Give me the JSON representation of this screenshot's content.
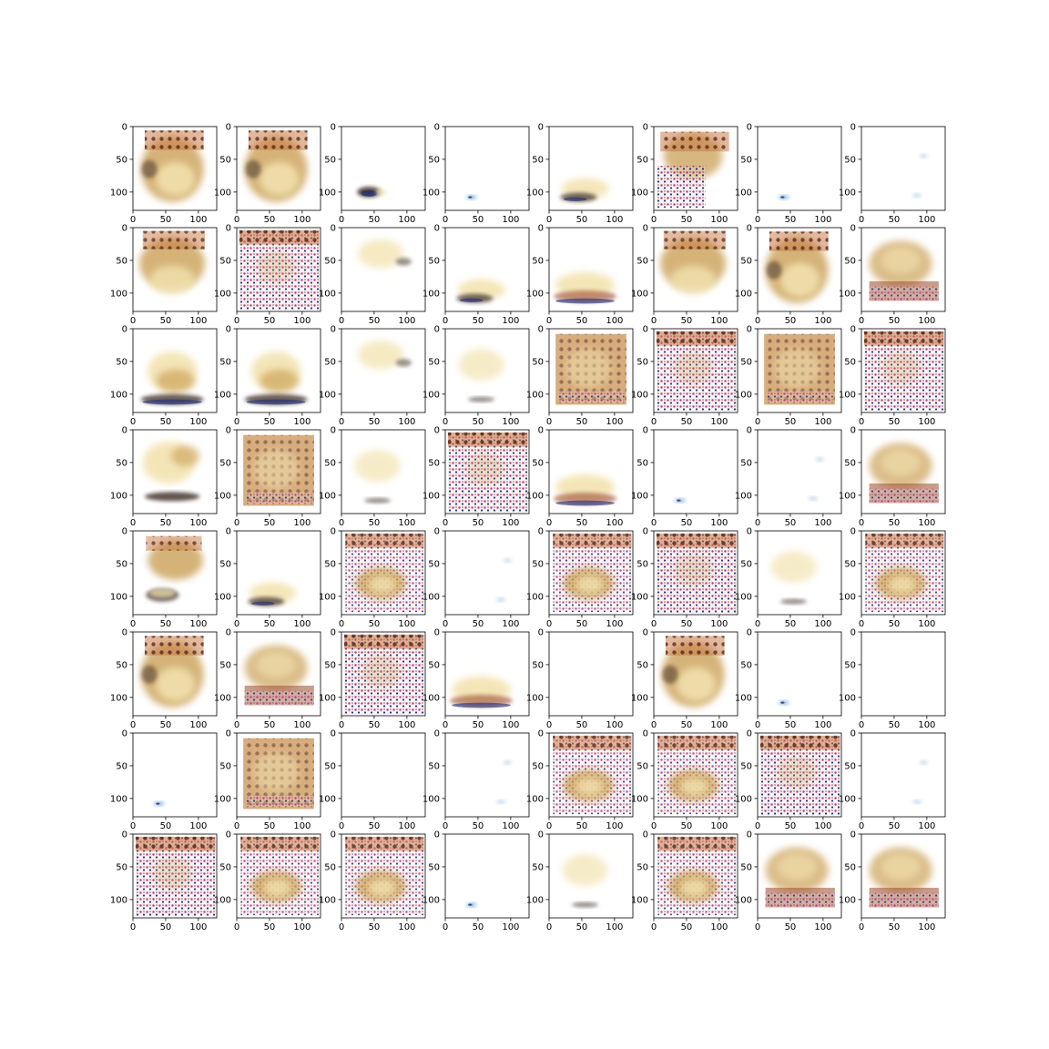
{
  "chart_data": {
    "type": "image-grid",
    "rows": 8,
    "cols": 8,
    "subplot": {
      "xlim": [
        0,
        128
      ],
      "ylim": [
        128,
        0
      ],
      "xticks": [
        0,
        50,
        100
      ],
      "xtick_labels": [
        "0",
        "50",
        "100"
      ],
      "yticks": [
        0,
        50,
        100
      ],
      "ytick_labels": [
        "0",
        "50",
        "100"
      ]
    },
    "blob_palette": {
      "cream": "#f3e3b0",
      "ochre": "#c79a4c",
      "rust": "#9b4a2a",
      "dark": "#3a2a20",
      "navy": "#1c2a78",
      "magenta": "#b02a8a",
      "skyblue": "#6fa8d8"
    },
    "panels": [
      {
        "v": "brown-blob"
      },
      {
        "v": "brown-blob"
      },
      {
        "v": "small-bottom-dark"
      },
      {
        "v": "tiny-blue"
      },
      {
        "v": "low-yellow"
      },
      {
        "v": "pattern-top"
      },
      {
        "v": "tiny-blue"
      },
      {
        "v": "faint-specks"
      },
      {
        "v": "brown-blob-diag"
      },
      {
        "v": "pattern-full"
      },
      {
        "v": "light-top"
      },
      {
        "v": "low-yellow"
      },
      {
        "v": "low-yellow-wide"
      },
      {
        "v": "brown-blob-diag"
      },
      {
        "v": "brown-blob"
      },
      {
        "v": "brown-band"
      },
      {
        "v": "yellow-band"
      },
      {
        "v": "yellow-band"
      },
      {
        "v": "light-top"
      },
      {
        "v": "light-mid"
      },
      {
        "v": "brown-square"
      },
      {
        "v": "pattern-full"
      },
      {
        "v": "brown-square"
      },
      {
        "v": "pattern-full"
      },
      {
        "v": "yellow-band-high"
      },
      {
        "v": "brown-square"
      },
      {
        "v": "light-mid"
      },
      {
        "v": "pattern-full"
      },
      {
        "v": "low-yellow-wide"
      },
      {
        "v": "tiny-blue"
      },
      {
        "v": "faint-specks"
      },
      {
        "v": "brown-band"
      },
      {
        "v": "two-blobs"
      },
      {
        "v": "low-yellow"
      },
      {
        "v": "pattern-blob"
      },
      {
        "v": "faint-specks"
      },
      {
        "v": "pattern-blob"
      },
      {
        "v": "pattern-full"
      },
      {
        "v": "light-mid"
      },
      {
        "v": "pattern-blob"
      },
      {
        "v": "brown-blob"
      },
      {
        "v": "brown-band"
      },
      {
        "v": "pattern-full"
      },
      {
        "v": "low-yellow-wide"
      },
      {
        "v": "empty"
      },
      {
        "v": "brown-blob"
      },
      {
        "v": "tiny-blue"
      },
      {
        "v": "empty"
      },
      {
        "v": "tiny-blue"
      },
      {
        "v": "brown-square"
      },
      {
        "v": "empty"
      },
      {
        "v": "faint-specks"
      },
      {
        "v": "pattern-blob"
      },
      {
        "v": "pattern-blob"
      },
      {
        "v": "pattern-full"
      },
      {
        "v": "faint-specks"
      },
      {
        "v": "pattern-full"
      },
      {
        "v": "pattern-blob"
      },
      {
        "v": "pattern-blob"
      },
      {
        "v": "tiny-blue"
      },
      {
        "v": "light-mid"
      },
      {
        "v": "pattern-blob"
      },
      {
        "v": "brown-band"
      },
      {
        "v": "brown-band"
      }
    ]
  }
}
